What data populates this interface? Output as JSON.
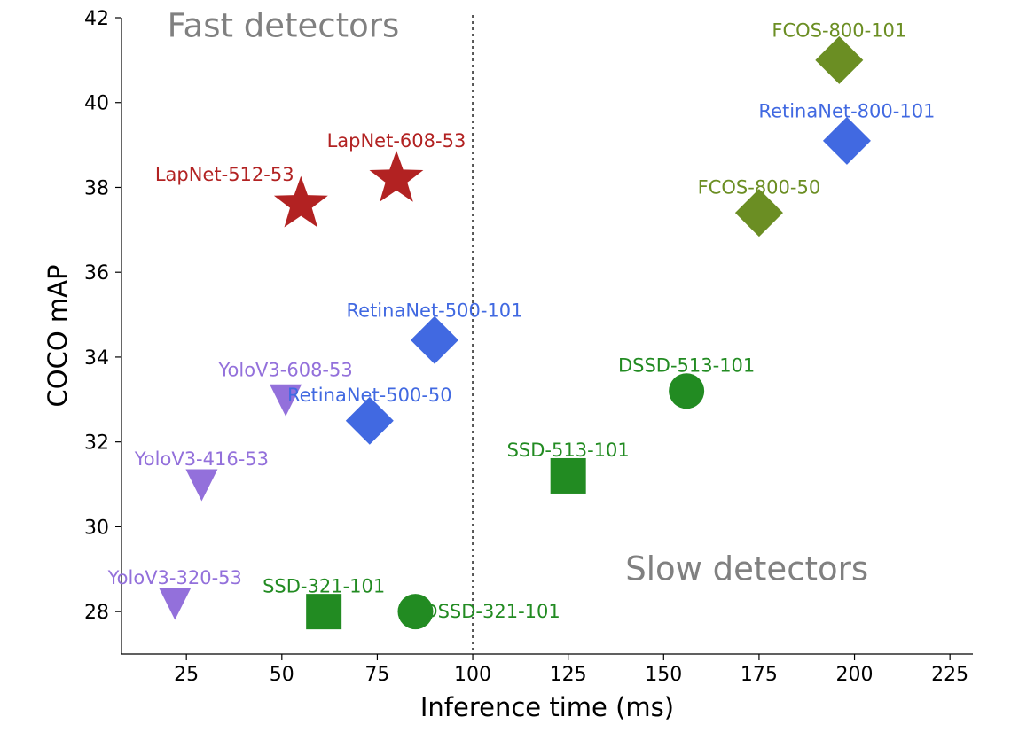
{
  "colors": {
    "LapNet": "#b22222",
    "YoloV3": "#9370db",
    "RetinaNet": "#4169e1",
    "SSD": "#228b22",
    "DSSD": "#228b22",
    "FCOS": "#6b8e23",
    "region_text": "#808080",
    "divider": "#555555",
    "axis": "#000000"
  },
  "chart_data": {
    "type": "scatter",
    "title": "",
    "xlabel": "Inference time (ms)",
    "ylabel": "COCO mAP",
    "xlim": [
      8,
      231
    ],
    "ylim": [
      27,
      42
    ],
    "xticks": [
      25,
      50,
      75,
      100,
      125,
      150,
      175,
      200,
      225
    ],
    "yticks": [
      28,
      30,
      32,
      34,
      36,
      38,
      40,
      42
    ],
    "grid": false,
    "divider_x": 100,
    "regions": [
      {
        "text": "Fast detectors",
        "x": 20,
        "y": 41.8,
        "anchor": "start"
      },
      {
        "text": "Slow detectors",
        "x": 140,
        "y": 29.0,
        "anchor": "start"
      }
    ],
    "points": [
      {
        "name": "LapNet-512-53",
        "family": "LapNet",
        "marker": "star",
        "x": 55,
        "y": 37.6,
        "label_x": 35,
        "label_y": 38.3,
        "anchor": "middle"
      },
      {
        "name": "LapNet-608-53",
        "family": "LapNet",
        "marker": "star",
        "x": 80,
        "y": 38.2,
        "label_x": 80,
        "label_y": 39.1,
        "anchor": "middle"
      },
      {
        "name": "YoloV3-608-53",
        "family": "YoloV3",
        "marker": "triangle-down",
        "x": 51,
        "y": 33.0,
        "label_x": 51,
        "label_y": 33.7,
        "anchor": "middle"
      },
      {
        "name": "YoloV3-416-53",
        "family": "YoloV3",
        "marker": "triangle-down",
        "x": 29,
        "y": 31.0,
        "label_x": 29,
        "label_y": 31.6,
        "anchor": "middle"
      },
      {
        "name": "YoloV3-320-53",
        "family": "YoloV3",
        "marker": "triangle-down",
        "x": 22,
        "y": 28.2,
        "label_x": 22,
        "label_y": 28.8,
        "anchor": "middle"
      },
      {
        "name": "RetinaNet-500-101",
        "family": "RetinaNet",
        "marker": "diamond",
        "x": 90,
        "y": 34.4,
        "label_x": 90,
        "label_y": 35.1,
        "anchor": "middle"
      },
      {
        "name": "RetinaNet-500-50",
        "family": "RetinaNet",
        "marker": "diamond",
        "x": 73,
        "y": 32.5,
        "label_x": 73,
        "label_y": 33.1,
        "anchor": "middle"
      },
      {
        "name": "RetinaNet-800-101",
        "family": "RetinaNet",
        "marker": "diamond",
        "x": 198,
        "y": 39.1,
        "label_x": 198,
        "label_y": 39.8,
        "anchor": "middle"
      },
      {
        "name": "FCOS-800-101",
        "family": "FCOS",
        "marker": "diamond",
        "x": 196,
        "y": 41.0,
        "label_x": 196,
        "label_y": 41.7,
        "anchor": "middle"
      },
      {
        "name": "FCOS-800-50",
        "family": "FCOS",
        "marker": "diamond",
        "x": 175,
        "y": 37.4,
        "label_x": 175,
        "label_y": 38.0,
        "anchor": "middle"
      },
      {
        "name": "SSD-321-101",
        "family": "SSD",
        "marker": "square",
        "x": 61,
        "y": 28.0,
        "label_x": 61,
        "label_y": 28.6,
        "anchor": "middle"
      },
      {
        "name": "SSD-513-101",
        "family": "SSD",
        "marker": "square",
        "x": 125,
        "y": 31.2,
        "label_x": 125,
        "label_y": 31.8,
        "anchor": "middle"
      },
      {
        "name": "DSSD-321-101",
        "family": "DSSD",
        "marker": "circle",
        "x": 85,
        "y": 28.0,
        "label_x": 105,
        "label_y": 28.0,
        "anchor": "middle"
      },
      {
        "name": "DSSD-513-101",
        "family": "DSSD",
        "marker": "circle",
        "x": 156,
        "y": 33.2,
        "label_x": 156,
        "label_y": 33.8,
        "anchor": "middle"
      }
    ]
  }
}
